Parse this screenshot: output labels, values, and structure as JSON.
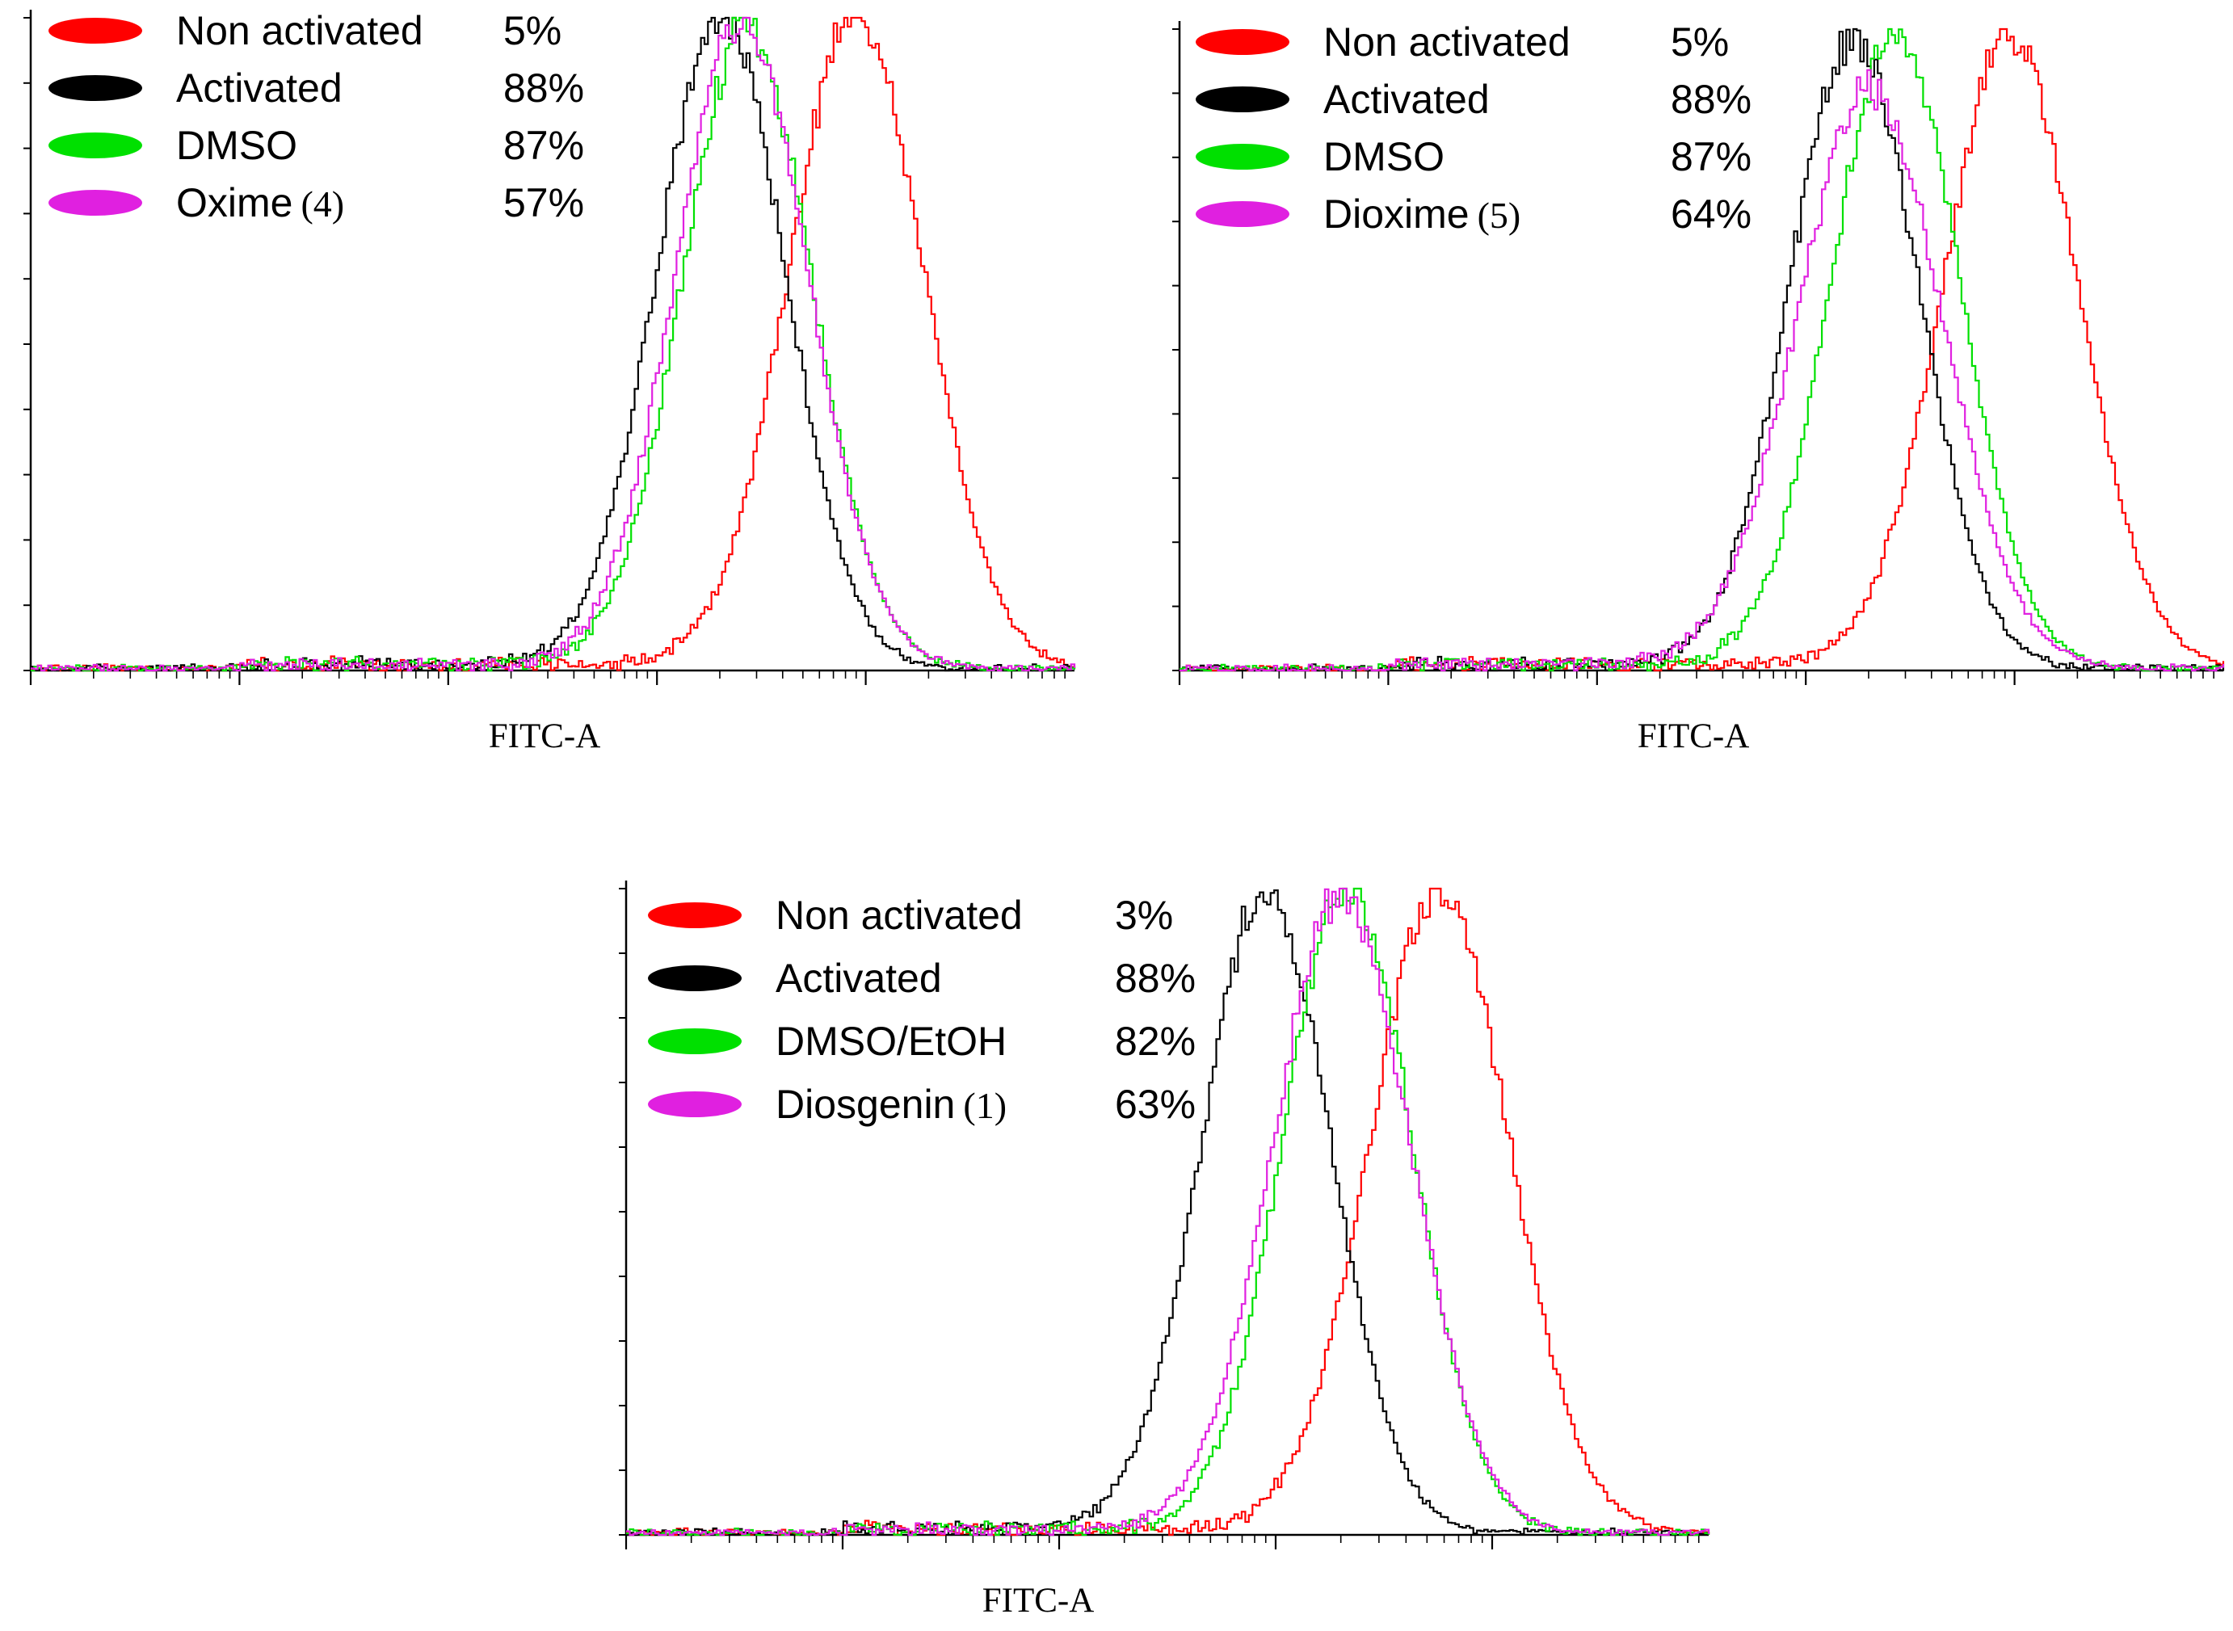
{
  "chart_data": [
    {
      "type": "histogram",
      "panel": "top-left",
      "xlabel": "FITC-A",
      "ylabel": "",
      "x_scale": "log",
      "legend_position": "top-left",
      "series": [
        {
          "name": "Non activated",
          "compound_number": "",
          "percent": "5%",
          "color": "#ff0000",
          "mode": 0.79,
          "spread": 0.065,
          "height": 1.0
        },
        {
          "name": "Activated",
          "compound_number": "",
          "percent": "88%",
          "color": "#000000",
          "mode": 0.66,
          "spread": 0.062,
          "height": 1.0
        },
        {
          "name": "DMSO",
          "compound_number": "",
          "percent": "87%",
          "color": "#00e000",
          "mode": 0.685,
          "spread": 0.062,
          "height": 0.98
        },
        {
          "name": "Oxime",
          "compound_number": "(4)",
          "percent": "57%",
          "color": "#e020e0",
          "mode": 0.68,
          "spread": 0.064,
          "height": 0.99
        }
      ]
    },
    {
      "type": "histogram",
      "panel": "top-right",
      "xlabel": "FITC-A",
      "ylabel": "",
      "x_scale": "log",
      "legend_position": "top-left",
      "series": [
        {
          "name": "Non activated",
          "compound_number": "",
          "percent": "5%",
          "color": "#ff0000",
          "mode": 0.795,
          "spread": 0.065,
          "height": 0.98
        },
        {
          "name": "Activated",
          "compound_number": "",
          "percent": "88%",
          "color": "#000000",
          "mode": 0.645,
          "spread": 0.062,
          "height": 0.98
        },
        {
          "name": "DMSO",
          "compound_number": "",
          "percent": "87%",
          "color": "#00e000",
          "mode": 0.685,
          "spread": 0.062,
          "height": 0.99
        },
        {
          "name": "Dioxime",
          "compound_number": "(5)",
          "percent": "64%",
          "color": "#e020e0",
          "mode": 0.66,
          "spread": 0.07,
          "height": 0.9
        }
      ]
    },
    {
      "type": "histogram",
      "panel": "bottom-center",
      "xlabel": "FITC-A",
      "ylabel": "",
      "x_scale": "log",
      "legend_position": "top-left",
      "series": [
        {
          "name": "Non activated",
          "compound_number": "",
          "percent": "3%",
          "color": "#ff0000",
          "mode": 0.75,
          "spread": 0.065,
          "height": 0.99
        },
        {
          "name": "Activated",
          "compound_number": "",
          "percent": "88%",
          "color": "#000000",
          "mode": 0.59,
          "spread": 0.06,
          "height": 0.99
        },
        {
          "name": "DMSO/EtOH",
          "compound_number": "",
          "percent": "82%",
          "color": "#00e000",
          "mode": 0.665,
          "spread": 0.06,
          "height": 1.0
        },
        {
          "name": "Diosgenin",
          "compound_number": "(1)",
          "percent": "63%",
          "color": "#e020e0",
          "mode": 0.66,
          "spread": 0.064,
          "height": 0.98
        }
      ]
    }
  ]
}
